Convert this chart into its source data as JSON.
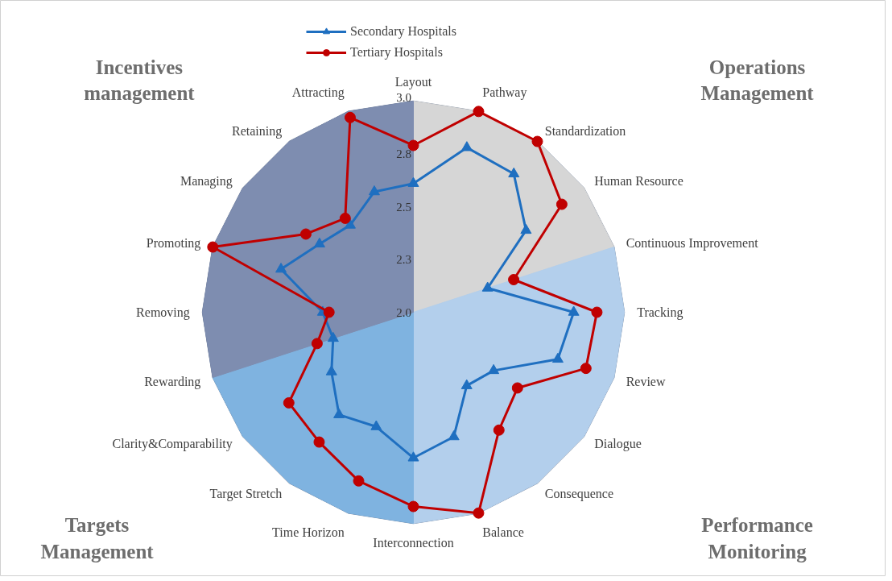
{
  "chart_data": {
    "type": "radar",
    "categories": [
      "Layout",
      "Pathway",
      "Standardization",
      "Human Resource",
      "Continuous Improvement",
      "Tracking",
      "Review",
      "Dialogue",
      "Consequence",
      "Balance",
      "Interconnection",
      "Time Horizon",
      "Target Stretch",
      "Clarity&Comparability",
      "Rewarding",
      "Removing",
      "Promoting",
      "Managing",
      "Retaining",
      "Attracting"
    ],
    "series": [
      {
        "type": "area",
        "color": "#d6d6d6",
        "values": [
          3.0,
          3.0,
          3.0,
          3.0,
          3.0,
          null,
          null,
          null,
          null,
          null,
          null,
          null,
          null,
          null,
          null,
          null,
          null,
          null,
          null,
          null
        ]
      },
      {
        "type": "area",
        "color": "#b3cfec",
        "values": [
          null,
          null,
          null,
          null,
          3.0,
          3.0,
          3.0,
          3.0,
          3.0,
          3.0,
          3.0,
          null,
          null,
          null,
          null,
          null,
          null,
          null,
          null,
          null
        ]
      },
      {
        "type": "area",
        "color": "#7fb3e0",
        "values": [
          null,
          null,
          null,
          null,
          null,
          null,
          null,
          null,
          null,
          null,
          3.0,
          3.0,
          3.0,
          3.0,
          3.0,
          null,
          null,
          null,
          null,
          null
        ]
      },
      {
        "type": "area",
        "color": "#7e8db0",
        "values": [
          3.0,
          null,
          null,
          null,
          null,
          null,
          null,
          null,
          null,
          null,
          null,
          null,
          null,
          null,
          3.0,
          3.0,
          3.0,
          3.0,
          3.0,
          3.0
        ]
      },
      {
        "name": "Secondary Hospitals",
        "color": "#1f6fc0",
        "marker": "triangle",
        "values": [
          2.61,
          2.82,
          2.81,
          2.66,
          2.37,
          2.76,
          2.72,
          2.47,
          2.43,
          2.62,
          2.69,
          2.57,
          2.6,
          2.48,
          2.4,
          2.43,
          2.66,
          2.55,
          2.51,
          2.6
        ]
      },
      {
        "name": "Tertiary Hospitals",
        "color": "#c00000",
        "marker": "circle",
        "values": [
          2.79,
          3.0,
          3.0,
          2.87,
          2.5,
          2.87,
          2.86,
          2.61,
          2.69,
          3.0,
          2.92,
          2.84,
          2.76,
          2.73,
          2.48,
          2.4,
          3.0,
          2.63,
          2.55,
          2.97
        ]
      }
    ],
    "ylim": [
      2.0,
      3.0
    ],
    "yticks": [
      {
        "value": 2.0,
        "label": "2.0"
      },
      {
        "value": 2.25,
        "label": "2.3"
      },
      {
        "value": 2.5,
        "label": "2.5"
      },
      {
        "value": 2.75,
        "label": "2.8"
      },
      {
        "value": 3.0,
        "label": "3.0"
      }
    ],
    "grid": true,
    "legend": "top",
    "annotations": [
      "Incentives management",
      "Operations Management",
      "Performance Monitoring",
      "Targets Management"
    ]
  }
}
